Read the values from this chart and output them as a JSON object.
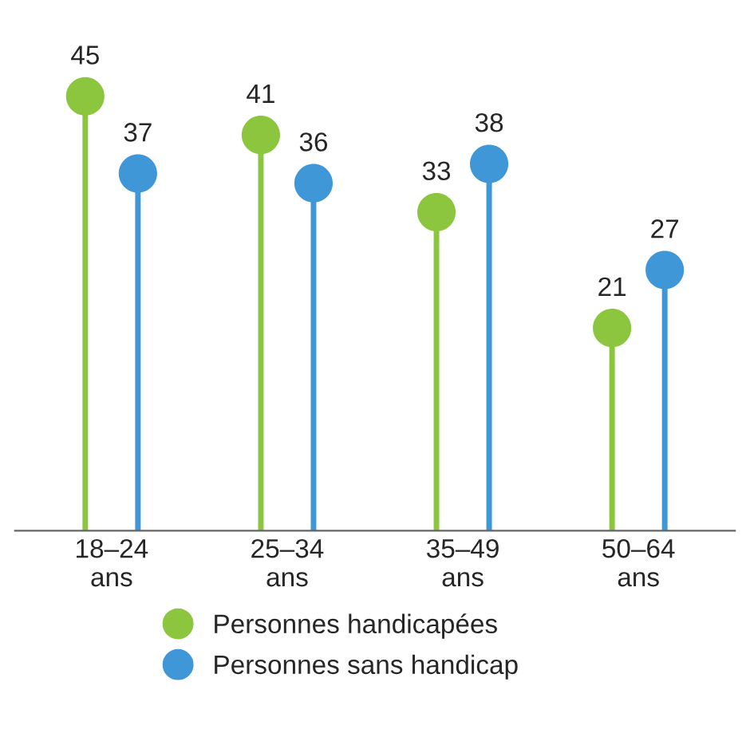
{
  "chart_data": {
    "type": "lollipop",
    "categories": [
      "18–24\nans",
      "25–34\nans",
      "35–49\nans",
      "50–64\nans"
    ],
    "series": [
      {
        "name": "Personnes handicapées",
        "color": "#8cc63f",
        "values": [
          45,
          41,
          33,
          21
        ]
      },
      {
        "name": "Personnes sans handicap",
        "color": "#3f97d8",
        "values": [
          37,
          36,
          38,
          27
        ]
      }
    ],
    "data_labels": true,
    "marker": "circle",
    "legend": "bottom",
    "grid": false,
    "tick_labels": "x"
  }
}
